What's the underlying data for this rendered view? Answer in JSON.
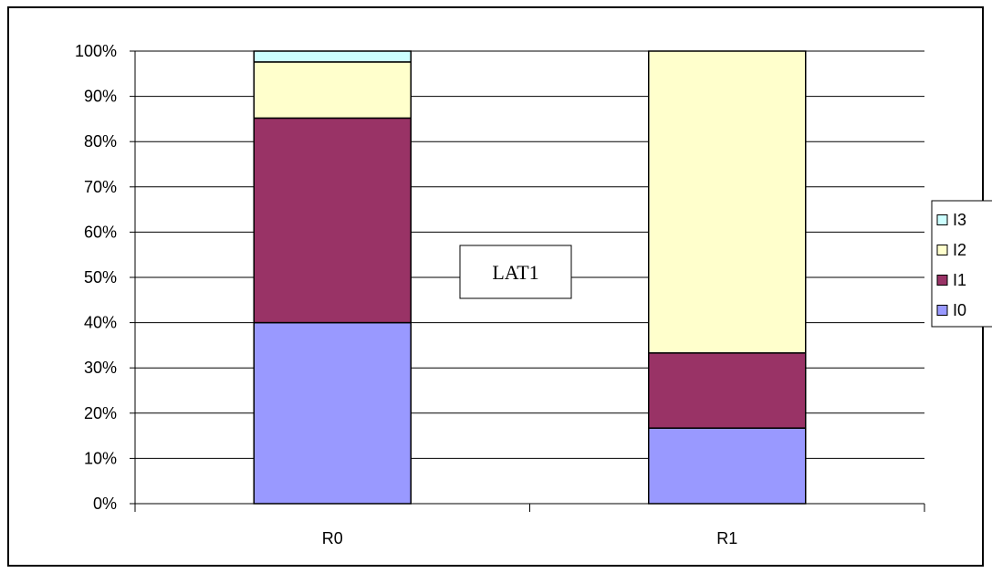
{
  "chart_data": {
    "type": "bar",
    "stacked": true,
    "percent_stacked": true,
    "categories": [
      "R0",
      "R1"
    ],
    "series": [
      {
        "name": "I0",
        "values": [
          40,
          16.7
        ],
        "color": "#9999FF"
      },
      {
        "name": "I1",
        "values": [
          45.2,
          16.6
        ],
        "color": "#993366"
      },
      {
        "name": "I2",
        "values": [
          12.4,
          66.7
        ],
        "color": "#FFFFCC"
      },
      {
        "name": "I3",
        "values": [
          2.4,
          0
        ],
        "color": "#CCFFFF"
      }
    ],
    "ylim": [
      0,
      100
    ],
    "yticks": [
      "0%",
      "10%",
      "20%",
      "30%",
      "40%",
      "50%",
      "60%",
      "70%",
      "80%",
      "90%",
      "100%"
    ],
    "grid": true,
    "legend": "right",
    "annotation": "LAT1",
    "title": "",
    "xlabel": "",
    "ylabel": ""
  }
}
